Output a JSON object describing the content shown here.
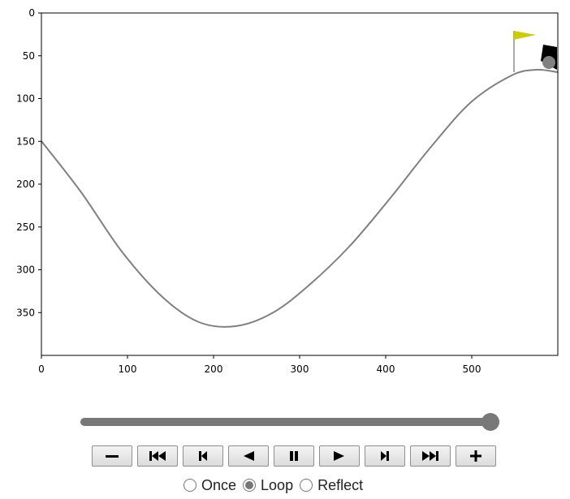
{
  "plot": {
    "x_ticks": [
      "0",
      "100",
      "200",
      "300",
      "400",
      "500"
    ],
    "y_ticks": [
      "0",
      "50",
      "100",
      "150",
      "200",
      "250",
      "300",
      "350"
    ],
    "x_range": [
      0,
      600
    ],
    "y_range": [
      0,
      400
    ],
    "y_inverted": true,
    "flag_color": "#cccc00",
    "car_color": "#000000",
    "wheel_color": "#808080",
    "track_color": "#808080"
  },
  "slider": {
    "position_fraction": 1.0
  },
  "controls": {
    "buttons": [
      {
        "name": "decrease-speed-button",
        "icon": "minus-icon"
      },
      {
        "name": "first-frame-button",
        "icon": "skip-to-start-icon"
      },
      {
        "name": "previous-frame-button",
        "icon": "step-back-icon"
      },
      {
        "name": "play-reverse-button",
        "icon": "play-reverse-icon"
      },
      {
        "name": "pause-button",
        "icon": "pause-icon"
      },
      {
        "name": "play-button",
        "icon": "play-icon"
      },
      {
        "name": "next-frame-button",
        "icon": "step-forward-icon"
      },
      {
        "name": "last-frame-button",
        "icon": "skip-to-end-icon"
      },
      {
        "name": "increase-speed-button",
        "icon": "plus-icon"
      }
    ]
  },
  "modes": {
    "once_label": "Once",
    "loop_label": "Loop",
    "reflect_label": "Reflect",
    "selected": "loop"
  }
}
